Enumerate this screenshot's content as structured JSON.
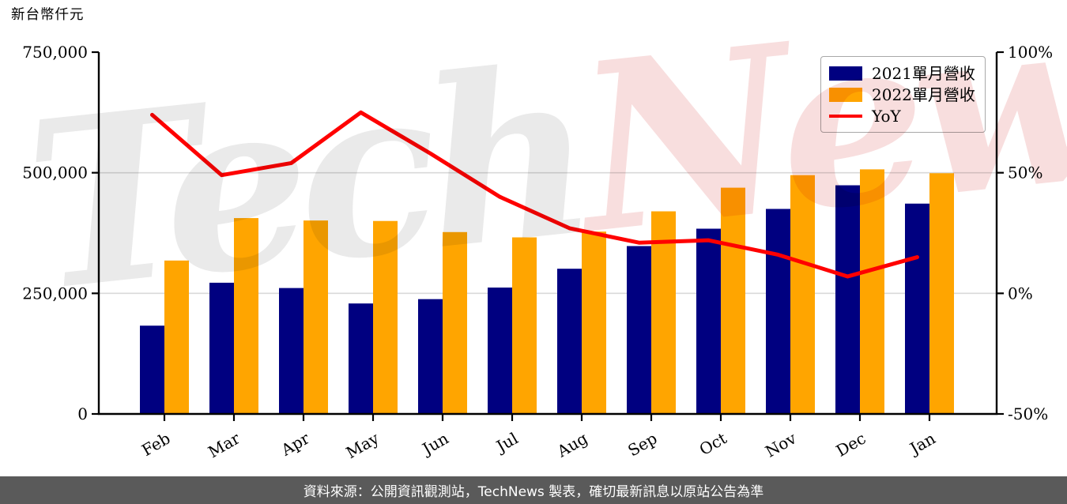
{
  "page": {
    "unit_label": "新台幣仟元",
    "footer_text": "資料來源：公開資訊觀測站，TechNews 製表，確切最新訊息以原站公告為準",
    "watermark": {
      "part1": "Tech",
      "part2": "News"
    }
  },
  "colors": {
    "bar_2021": "#000080",
    "bar_2022": "#FFA500",
    "yoy_line": "#FF0000",
    "gridline": "#D9D9D9",
    "axis": "#000000",
    "tick_text": "#000000",
    "legend_border": "#A8A8A8",
    "footer_bg": "#5A5A5A",
    "footer_text": "#FFFFFF",
    "watermark_gray": "#EAEAEA",
    "watermark_pink": "#F8DEDE"
  },
  "legend": {
    "items": [
      {
        "label": "2021單月營收",
        "swatch": "bar_2021",
        "type": "bar"
      },
      {
        "label": "2022單月營收",
        "swatch": "bar_2022",
        "type": "bar"
      },
      {
        "label": "YoY",
        "swatch": "yoy_line",
        "type": "line"
      }
    ]
  },
  "chart_data": {
    "type": "bar",
    "subtype": "grouped bars + line overlay (dual axis)",
    "categories": [
      "Feb",
      "Mar",
      "Apr",
      "May",
      "Jun",
      "Jul",
      "Aug",
      "Sep",
      "Oct",
      "Nov",
      "Dec",
      "Jan"
    ],
    "series": [
      {
        "name": "2021單月營收",
        "type": "bar",
        "axis": "left",
        "values": [
          183000,
          272000,
          261000,
          229000,
          238000,
          262000,
          301000,
          348000,
          384000,
          425000,
          474000,
          436000
        ]
      },
      {
        "name": "2022單月營收",
        "type": "bar",
        "axis": "left",
        "values": [
          318000,
          406000,
          401000,
          400000,
          377000,
          366000,
          378000,
          420000,
          469000,
          495000,
          507000,
          499000
        ]
      },
      {
        "name": "YoY",
        "type": "line",
        "axis": "right",
        "values": [
          74,
          49,
          54,
          75,
          58,
          40,
          27,
          21,
          22,
          16,
          7,
          15
        ]
      }
    ],
    "left_axis": {
      "title": "新台幣仟元",
      "min": 0,
      "max": 750000,
      "tick_values": [
        0,
        250000,
        500000,
        750000
      ],
      "tick_labels": [
        "0",
        "250,000",
        "500,000",
        "750,000"
      ]
    },
    "right_axis": {
      "title": "YoY %",
      "min": -50,
      "max": 100,
      "tick_values": [
        -50,
        0,
        50,
        100
      ],
      "tick_labels": [
        "-50%",
        "0%",
        "50%",
        "100%"
      ]
    },
    "grid": "horizontal gridlines at 250,000 and 500,000 only",
    "legend_position": "top-right inside plot",
    "x_tick_label_rotation_deg": -30
  }
}
